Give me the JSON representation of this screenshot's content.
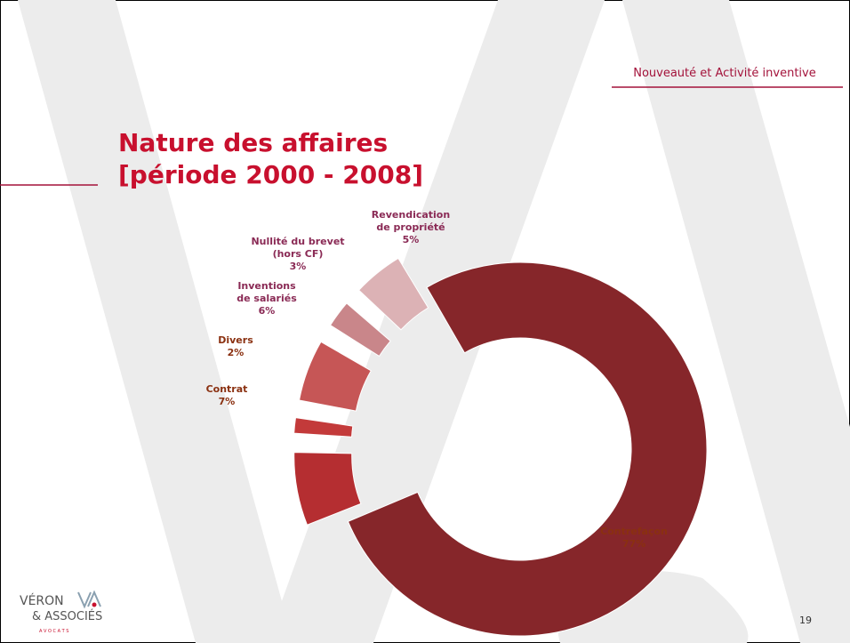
{
  "header": "Nouveauté et Activité inventive",
  "page_number": "19",
  "logo": {
    "name": "VÉRON",
    "associates": "& ASSOCIÉS",
    "tagline": "A V O C A T S"
  },
  "chart_data": {
    "type": "donut",
    "title": [
      "Nature des affaires",
      "[période 2000 - 2008]"
    ],
    "categories": [
      "Contrefaçon",
      "Contrat",
      "Divers",
      "Inventions\nde salariés",
      "Nullité du brevet\n(hors CF)",
      "Revendication\nde propriété"
    ],
    "values": [
      77,
      7,
      2,
      6,
      3,
      5
    ],
    "value_labels": [
      "77%",
      "7%",
      "2%",
      "6%",
      "3%",
      "5%"
    ],
    "colors": [
      "#86262a",
      "#b52e31",
      "#c33a3a",
      "#c65656",
      "#c9868a",
      "#dcb2b5"
    ]
  }
}
